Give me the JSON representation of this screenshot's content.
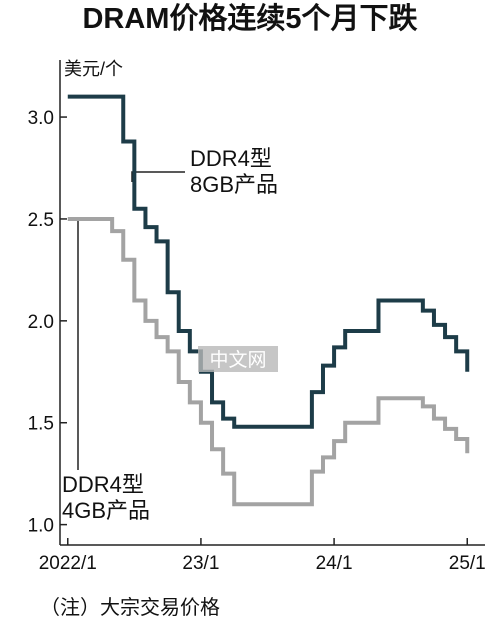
{
  "chart_data": {
    "type": "step",
    "title": "DRAM价格连续5个月下跌",
    "y_unit": "美元/个",
    "note": "（注）大宗交易价格",
    "watermark": "中文网",
    "x": [
      0,
      1,
      2,
      3,
      4,
      5,
      6,
      7,
      8,
      9,
      10,
      11,
      12,
      13,
      14,
      15,
      16,
      17,
      18,
      19,
      20,
      21,
      22,
      23,
      24,
      25,
      26,
      27,
      28,
      29,
      30,
      31,
      32,
      33,
      34,
      35,
      36
    ],
    "xlim": [
      -0.7,
      37.6
    ],
    "xticks": [
      {
        "value": 0,
        "label": "2022/1"
      },
      {
        "value": 12,
        "label": "23/1"
      },
      {
        "value": 24,
        "label": "24/1"
      },
      {
        "value": 36,
        "label": "25/1"
      }
    ],
    "ylim": [
      0.9,
      3.28
    ],
    "yticks": [
      {
        "value": 1,
        "label": "1.0"
      },
      {
        "value": 1.5,
        "label": "1.5"
      },
      {
        "value": 2,
        "label": "2.0"
      },
      {
        "value": 2.5,
        "label": "2.5"
      },
      {
        "value": 3,
        "label": "3.0"
      }
    ],
    "series": [
      {
        "name": "DDR4型\n8GB产品",
        "color": "#1d3c48",
        "values": [
          3.1,
          3.1,
          3.1,
          3.1,
          3.1,
          2.88,
          2.55,
          2.46,
          2.39,
          2.14,
          1.95,
          1.85,
          1.75,
          1.6,
          1.52,
          1.48,
          1.48,
          1.48,
          1.48,
          1.48,
          1.48,
          1.48,
          1.65,
          1.78,
          1.87,
          1.95,
          1.95,
          1.95,
          2.1,
          2.1,
          2.1,
          2.1,
          2.05,
          1.98,
          1.92,
          1.85,
          1.75
        ]
      },
      {
        "name": "DDR4型\n4GB产品",
        "color": "#a3a3a3",
        "values": [
          2.5,
          2.5,
          2.5,
          2.5,
          2.44,
          2.3,
          2.1,
          2.0,
          1.92,
          1.85,
          1.7,
          1.6,
          1.5,
          1.37,
          1.25,
          1.1,
          1.1,
          1.1,
          1.1,
          1.1,
          1.1,
          1.1,
          1.26,
          1.33,
          1.41,
          1.5,
          1.5,
          1.5,
          1.62,
          1.62,
          1.62,
          1.62,
          1.58,
          1.52,
          1.47,
          1.42,
          1.35
        ]
      }
    ]
  }
}
